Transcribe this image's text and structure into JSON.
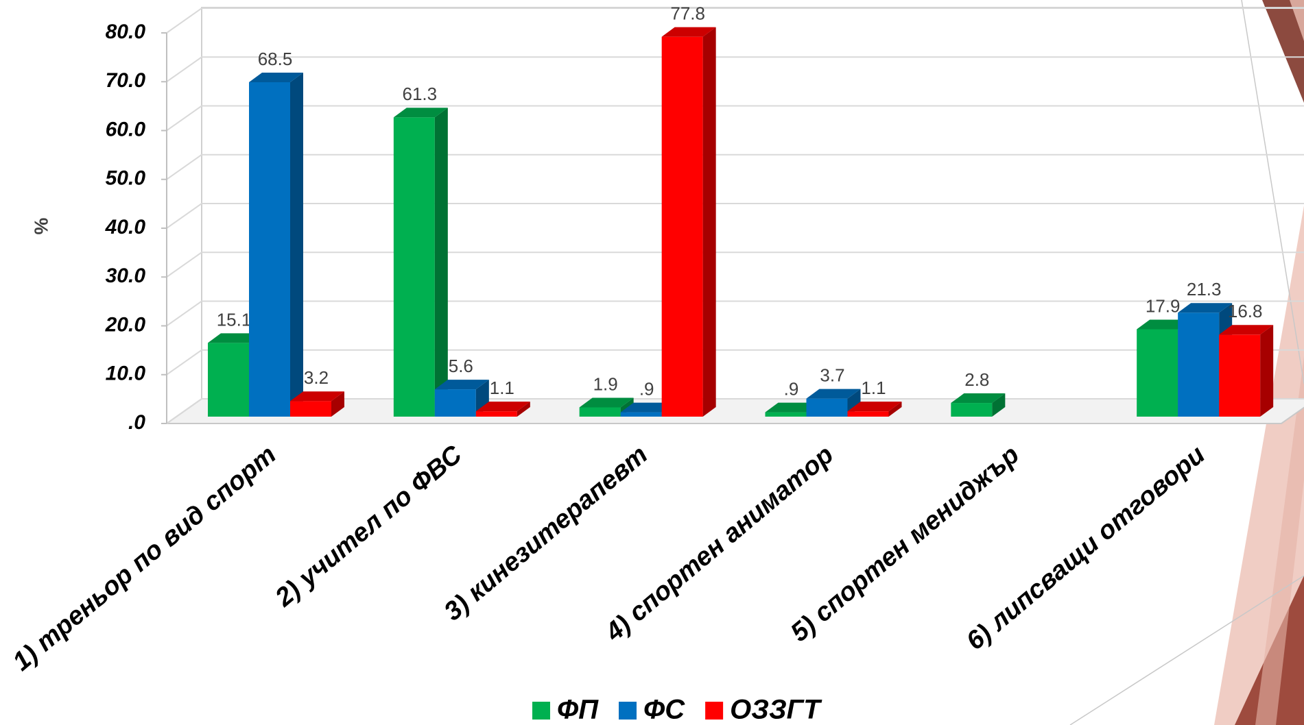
{
  "chart_data": {
    "type": "bar3d",
    "y_label": "%",
    "categories": [
      "1) треньор по вид спорт",
      "2) учител по ФВС",
      "3) кинезитерапевт",
      "4) спортен аниматор",
      "5) спортен мениджър",
      "6) липсващи отговори"
    ],
    "series": [
      {
        "name": "ФП",
        "color": "#00b050",
        "values": [
          15.1,
          61.3,
          1.9,
          0.9,
          2.8,
          17.9
        ],
        "value_labels": [
          "15.1",
          "61.3",
          "1.9",
          ".9",
          "2.8",
          "17.9"
        ]
      },
      {
        "name": "ФС",
        "color": "#0070c0",
        "values": [
          68.5,
          5.6,
          0.9,
          3.7,
          null,
          21.3
        ],
        "value_labels": [
          "68.5",
          "5.6",
          ".9",
          "3.7",
          null,
          "21.3"
        ]
      },
      {
        "name": "ОЗЗГТ",
        "color": "#ff0000",
        "values": [
          3.2,
          1.1,
          77.8,
          1.1,
          null,
          16.8
        ],
        "value_labels": [
          "3.2",
          "1.1",
          "77.8",
          "1.1",
          null,
          "16.8"
        ]
      }
    ],
    "ylim": [
      0,
      80
    ],
    "yticks": [
      {
        "value": 0,
        "label": ".0"
      },
      {
        "value": 10,
        "label": "10.0"
      },
      {
        "value": 20,
        "label": "20.0"
      },
      {
        "value": 30,
        "label": "30.0"
      },
      {
        "value": 40,
        "label": "40.0"
      },
      {
        "value": 50,
        "label": "50.0"
      },
      {
        "value": 60,
        "label": "60.0"
      },
      {
        "value": 70,
        "label": "70.0"
      },
      {
        "value": 80,
        "label": "80.0"
      }
    ],
    "grid": true
  }
}
